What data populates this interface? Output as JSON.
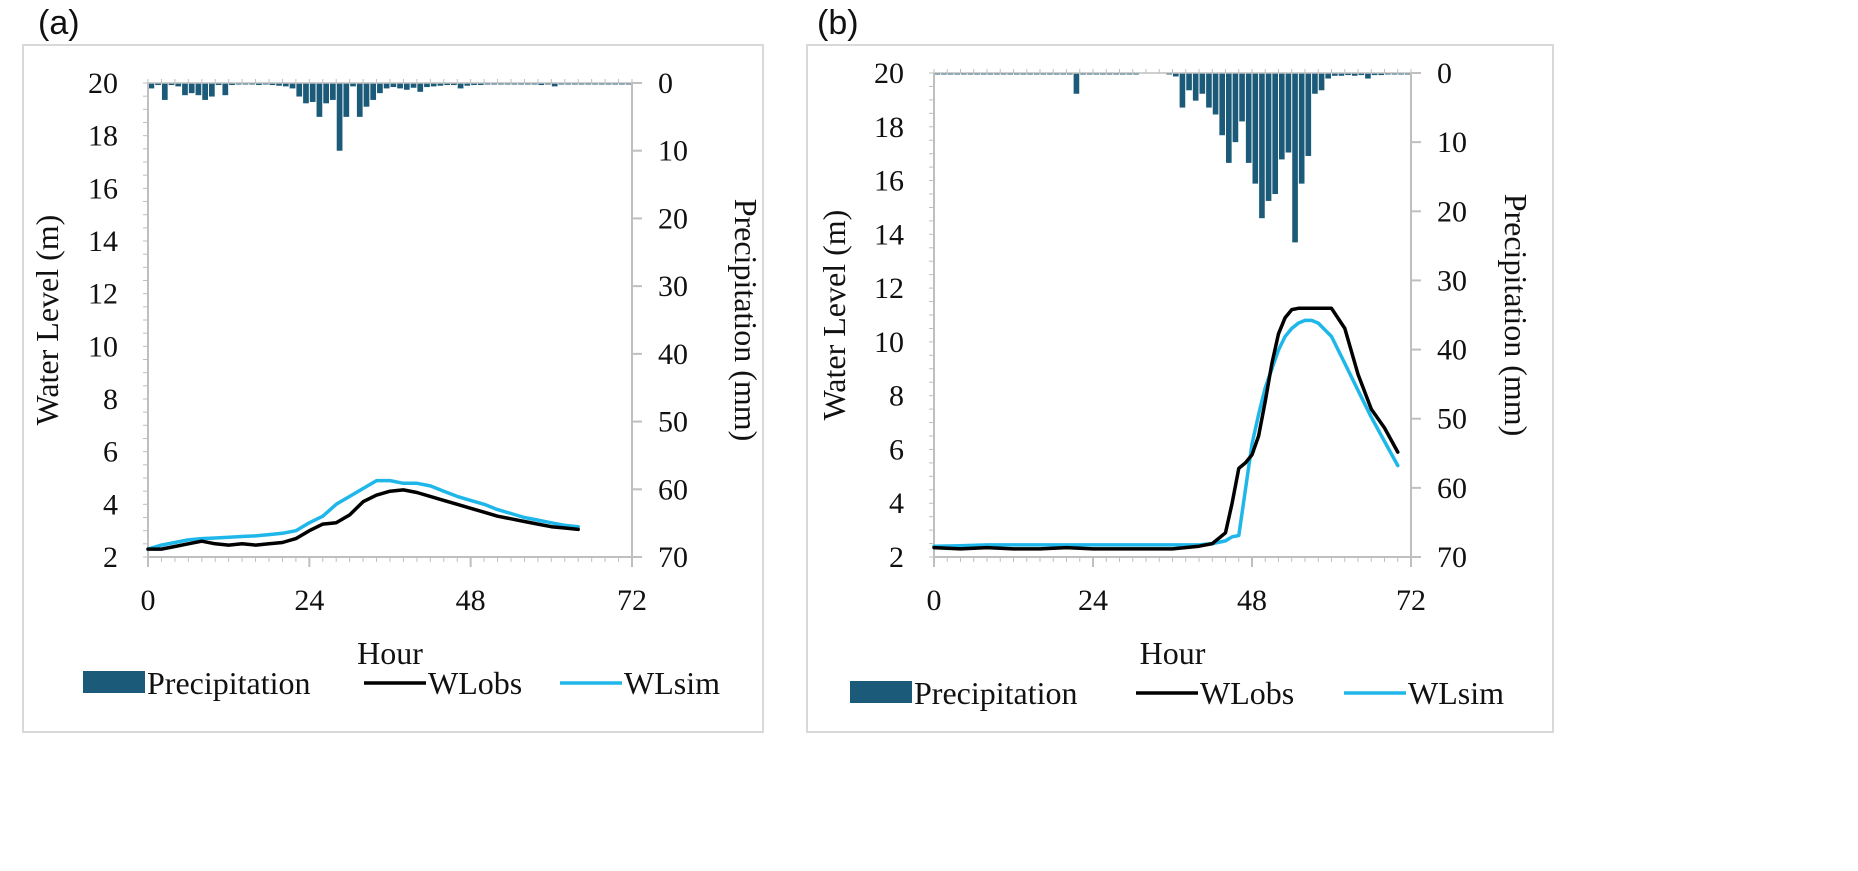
{
  "panels": [
    {
      "label": "(a)"
    },
    {
      "label": "(b)"
    }
  ],
  "colors": {
    "precipitation": "#1b5a78",
    "wlobs": "#000000",
    "wlsim": "#1fb7ea",
    "axis": "#bfbfbf"
  },
  "chart_data": [
    {
      "type": "bar+line",
      "title": "",
      "xlabel": "Hour",
      "ylabel_left": "Water Level (m)",
      "ylabel_right": "Precipitation (mm)",
      "xlim": [
        0,
        72
      ],
      "xticks": [
        0,
        24,
        48,
        72
      ],
      "ylim_left": [
        2,
        20
      ],
      "yticks_left": [
        2,
        4,
        6,
        8,
        10,
        12,
        14,
        16,
        18,
        20
      ],
      "ylim_right": [
        0,
        70
      ],
      "yticks_right": [
        0,
        10,
        20,
        30,
        40,
        50,
        60,
        70
      ],
      "right_axis_reversed": true,
      "grid": false,
      "legend": {
        "placement": "bottom",
        "entries": [
          "Precipitation",
          "WLobs",
          "WLsim"
        ]
      },
      "precipitation": {
        "name": "Precipitation",
        "hours": [
          0,
          1,
          2,
          3,
          4,
          5,
          6,
          7,
          8,
          9,
          10,
          11,
          12,
          13,
          14,
          15,
          16,
          17,
          18,
          19,
          20,
          21,
          22,
          23,
          24,
          25,
          26,
          27,
          28,
          29,
          30,
          31,
          32,
          33,
          34,
          35,
          36,
          37,
          38,
          39,
          40,
          41,
          42,
          43,
          44,
          45,
          46,
          47,
          48,
          49,
          50,
          51,
          52,
          53,
          54,
          55,
          56,
          57,
          58,
          59,
          60,
          61,
          62,
          63,
          64,
          65,
          66,
          67,
          68,
          69,
          70,
          71
        ],
        "values": [
          0.8,
          0.3,
          2.5,
          0.3,
          0.5,
          1.8,
          1.5,
          1.8,
          2.5,
          2,
          0.3,
          1.8,
          0.3,
          0.2,
          0.2,
          0.1,
          0.3,
          0.2,
          0.3,
          0.4,
          0.5,
          0.8,
          2,
          3,
          2.8,
          5,
          3,
          2.5,
          10,
          5,
          0.5,
          5,
          3.5,
          2.5,
          1.5,
          0.8,
          0.6,
          0.8,
          1,
          0.7,
          1.3,
          0.6,
          0.5,
          0.4,
          0.3,
          0.3,
          0.8,
          0.4,
          0.3,
          0.3,
          0.2,
          0.2,
          0.2,
          0.2,
          0.2,
          0.2,
          0.2,
          0.2,
          0.3,
          0.2,
          0.5,
          0.2,
          0.2,
          0.2,
          0.2,
          0.2,
          0.2,
          0.2,
          0.2,
          0.1,
          0.1,
          0.1
        ]
      },
      "series": [
        {
          "name": "WLobs",
          "x": [
            0,
            2,
            4,
            6,
            8,
            10,
            12,
            14,
            16,
            18,
            20,
            22,
            24,
            26,
            28,
            30,
            32,
            34,
            36,
            38,
            40,
            42,
            44,
            46,
            48,
            50,
            52,
            54,
            56,
            58,
            60,
            62,
            64
          ],
          "y": [
            2.3,
            2.3,
            2.4,
            2.5,
            2.6,
            2.5,
            2.45,
            2.5,
            2.45,
            2.5,
            2.55,
            2.7,
            3.0,
            3.25,
            3.3,
            3.6,
            4.1,
            4.35,
            4.5,
            4.55,
            4.45,
            4.3,
            4.15,
            4.0,
            3.85,
            3.7,
            3.55,
            3.45,
            3.35,
            3.25,
            3.15,
            3.1,
            3.05
          ]
        },
        {
          "name": "WLsim",
          "x": [
            0,
            2,
            4,
            6,
            8,
            10,
            12,
            14,
            16,
            18,
            20,
            22,
            24,
            26,
            28,
            30,
            32,
            34,
            36,
            38,
            40,
            42,
            44,
            46,
            48,
            50,
            52,
            54,
            56,
            58,
            60,
            62,
            64
          ],
          "y": [
            2.3,
            2.45,
            2.55,
            2.65,
            2.7,
            2.72,
            2.75,
            2.78,
            2.8,
            2.85,
            2.9,
            3.0,
            3.3,
            3.55,
            4.0,
            4.3,
            4.6,
            4.9,
            4.9,
            4.8,
            4.8,
            4.7,
            4.5,
            4.3,
            4.15,
            4.0,
            3.8,
            3.65,
            3.5,
            3.4,
            3.3,
            3.2,
            3.15
          ]
        }
      ]
    },
    {
      "type": "bar+line",
      "title": "",
      "xlabel": "Hour",
      "ylabel_left": "Water Level (m)",
      "ylabel_right": "Precipitation (mm)",
      "xlim": [
        0,
        72
      ],
      "xticks": [
        0,
        24,
        48,
        72
      ],
      "ylim_left": [
        2,
        20
      ],
      "yticks_left": [
        2,
        4,
        6,
        8,
        10,
        12,
        14,
        16,
        18,
        20
      ],
      "ylim_right": [
        0,
        70
      ],
      "yticks_right": [
        0,
        10,
        20,
        30,
        40,
        50,
        60,
        70
      ],
      "right_axis_reversed": true,
      "grid": false,
      "legend": {
        "placement": "bottom",
        "entries": [
          "Precipitation",
          "WLobs",
          "WLsim"
        ]
      },
      "precipitation": {
        "name": "Precipitation",
        "hours": [
          0,
          1,
          2,
          3,
          4,
          5,
          6,
          7,
          8,
          9,
          10,
          11,
          12,
          13,
          14,
          15,
          16,
          17,
          18,
          19,
          20,
          21,
          22,
          23,
          24,
          25,
          26,
          27,
          28,
          29,
          30,
          31,
          32,
          33,
          34,
          35,
          36,
          37,
          38,
          39,
          40,
          41,
          42,
          43,
          44,
          45,
          46,
          47,
          48,
          49,
          50,
          51,
          52,
          53,
          54,
          55,
          56,
          57,
          58,
          59,
          60,
          61,
          62,
          63,
          64,
          65,
          66,
          67,
          68,
          69,
          70,
          71
        ],
        "values": [
          0.1,
          0.1,
          0.1,
          0.1,
          0.1,
          0.1,
          0.1,
          0.2,
          0.2,
          0.2,
          0.1,
          0.1,
          0.1,
          0.2,
          0.1,
          0.1,
          0.1,
          0.1,
          0.2,
          0.2,
          0.2,
          3,
          0.1,
          0.1,
          0.2,
          0.2,
          0.2,
          0.1,
          0.2,
          0.2,
          0.1,
          0,
          0,
          0,
          0,
          0.2,
          0.5,
          5,
          2.5,
          4,
          3,
          5,
          6,
          9,
          13,
          10,
          7,
          13,
          16,
          21,
          18.5,
          17.5,
          12.5,
          11.5,
          24.5,
          16,
          12,
          3,
          2.5,
          0.8,
          0.4,
          0.4,
          0.3,
          0.4,
          0.3,
          0.8,
          0.3,
          0.3,
          0.2,
          0.1,
          0.1,
          0.1
        ]
      },
      "series": [
        {
          "name": "WLobs",
          "x": [
            0,
            4,
            8,
            12,
            16,
            20,
            24,
            28,
            32,
            36,
            40,
            42,
            44,
            45,
            46,
            47,
            48,
            49,
            50,
            51,
            52,
            53,
            54,
            55,
            56,
            57,
            58,
            60,
            62,
            64,
            66,
            68,
            70
          ],
          "y": [
            2.35,
            2.3,
            2.35,
            2.3,
            2.3,
            2.35,
            2.3,
            2.3,
            2.3,
            2.3,
            2.4,
            2.5,
            2.9,
            4.0,
            5.3,
            5.5,
            5.8,
            6.5,
            7.8,
            9.2,
            10.3,
            10.9,
            11.2,
            11.25,
            11.25,
            11.25,
            11.25,
            11.25,
            10.5,
            8.8,
            7.5,
            6.8,
            5.9
          ]
        },
        {
          "name": "WLsim",
          "x": [
            0,
            4,
            8,
            12,
            16,
            20,
            24,
            28,
            32,
            36,
            40,
            42,
            44,
            45,
            46,
            47,
            48,
            49,
            50,
            51,
            52,
            53,
            54,
            55,
            56,
            57,
            58,
            60,
            62,
            64,
            66,
            68,
            70
          ],
          "y": [
            2.4,
            2.42,
            2.45,
            2.45,
            2.45,
            2.45,
            2.45,
            2.45,
            2.45,
            2.45,
            2.45,
            2.5,
            2.6,
            2.75,
            2.8,
            4.5,
            6.2,
            7.3,
            8.3,
            9.0,
            9.7,
            10.2,
            10.5,
            10.7,
            10.8,
            10.8,
            10.7,
            10.2,
            9.2,
            8.2,
            7.2,
            6.3,
            5.4
          ]
        }
      ]
    }
  ]
}
